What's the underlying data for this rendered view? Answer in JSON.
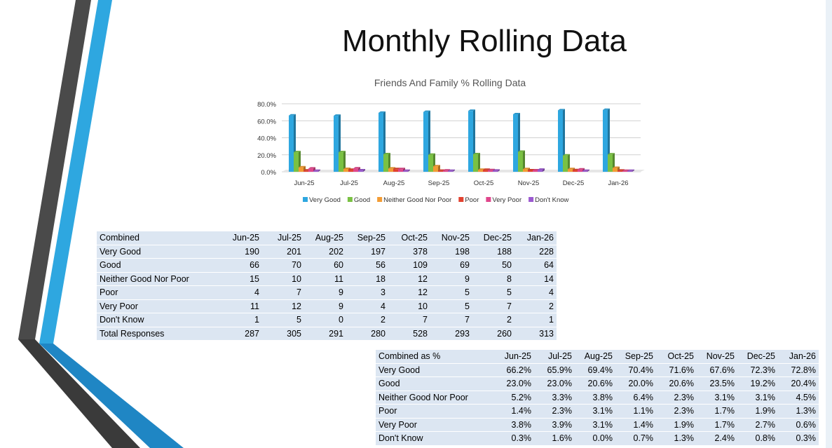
{
  "title": "Monthly Rolling Data",
  "colors": {
    "very_good": "#2ea7e0",
    "good": "#7ac143",
    "neither": "#f39c34",
    "poor": "#e2412f",
    "very_poor": "#e0468c",
    "dont_know": "#9b59d0",
    "table_row": "#dce6f2",
    "deco_blue": "#2ea7e0",
    "deco_dark": "#4a4a4a"
  },
  "chart_data": {
    "type": "bar",
    "title": "Friends And Family % Rolling Data",
    "categories": [
      "Jun-25",
      "Jul-25",
      "Aug-25",
      "Sep-25",
      "Oct-25",
      "Nov-25",
      "Dec-25",
      "Jan-26"
    ],
    "y_ticks": [
      "0.0%",
      "20.0%",
      "40.0%",
      "60.0%",
      "80.0%"
    ],
    "ylim": [
      0,
      80
    ],
    "grid": true,
    "legend": "bottom",
    "series": [
      {
        "name": "Very Good",
        "color_key": "very_good",
        "values": [
          66.2,
          65.9,
          69.4,
          70.4,
          71.6,
          67.6,
          72.3,
          72.8
        ]
      },
      {
        "name": "Good",
        "color_key": "good",
        "values": [
          23.0,
          23.0,
          20.6,
          20.0,
          20.6,
          23.5,
          19.2,
          20.4
        ]
      },
      {
        "name": "Neither Good Nor Poor",
        "color_key": "neither",
        "values": [
          5.2,
          3.3,
          3.8,
          6.4,
          2.3,
          3.1,
          3.1,
          4.5
        ]
      },
      {
        "name": "Poor",
        "color_key": "poor",
        "values": [
          1.4,
          2.3,
          3.1,
          1.1,
          2.3,
          1.7,
          1.9,
          1.3
        ]
      },
      {
        "name": "Very Poor",
        "color_key": "very_poor",
        "values": [
          3.8,
          3.9,
          3.1,
          1.4,
          1.9,
          1.7,
          2.7,
          0.6
        ]
      },
      {
        "name": "Don't Know",
        "color_key": "dont_know",
        "values": [
          0.3,
          1.6,
          0.0,
          0.7,
          1.3,
          2.4,
          0.8,
          0.3
        ]
      }
    ]
  },
  "counts_table": {
    "header": [
      "Combined",
      "Jun-25",
      "Jul-25",
      "Aug-25",
      "Sep-25",
      "Oct-25",
      "Nov-25",
      "Dec-25",
      "Jan-26"
    ],
    "rows": [
      [
        "Very Good",
        "190",
        "201",
        "202",
        "197",
        "378",
        "198",
        "188",
        "228"
      ],
      [
        "Good",
        "66",
        "70",
        "60",
        "56",
        "109",
        "69",
        "50",
        "64"
      ],
      [
        "Neither Good Nor Poor",
        "15",
        "10",
        "11",
        "18",
        "12",
        "9",
        "8",
        "14"
      ],
      [
        "Poor",
        "4",
        "7",
        "9",
        "3",
        "12",
        "5",
        "5",
        "4"
      ],
      [
        "Very Poor",
        "11",
        "12",
        "9",
        "4",
        "10",
        "5",
        "7",
        "2"
      ],
      [
        "Don't Know",
        "1",
        "5",
        "0",
        "2",
        "7",
        "7",
        "2",
        "1"
      ],
      [
        "Total Responses",
        "287",
        "305",
        "291",
        "280",
        "528",
        "293",
        "260",
        "313"
      ]
    ]
  },
  "pct_table": {
    "header": [
      "Combined as %",
      "Jun-25",
      "Jul-25",
      "Aug-25",
      "Sep-25",
      "Oct-25",
      "Nov-25",
      "Dec-25",
      "Jan-26"
    ],
    "rows": [
      [
        "Very Good",
        "66.2%",
        "65.9%",
        "69.4%",
        "70.4%",
        "71.6%",
        "67.6%",
        "72.3%",
        "72.8%"
      ],
      [
        "Good",
        "23.0%",
        "23.0%",
        "20.6%",
        "20.0%",
        "20.6%",
        "23.5%",
        "19.2%",
        "20.4%"
      ],
      [
        "Neither Good Nor Poor",
        "5.2%",
        "3.3%",
        "3.8%",
        "6.4%",
        "2.3%",
        "3.1%",
        "3.1%",
        "4.5%"
      ],
      [
        "Poor",
        "1.4%",
        "2.3%",
        "3.1%",
        "1.1%",
        "2.3%",
        "1.7%",
        "1.9%",
        "1.3%"
      ],
      [
        "Very Poor",
        "3.8%",
        "3.9%",
        "3.1%",
        "1.4%",
        "1.9%",
        "1.7%",
        "2.7%",
        "0.6%"
      ],
      [
        "Don't Know",
        "0.3%",
        "1.6%",
        "0.0%",
        "0.7%",
        "1.3%",
        "2.4%",
        "0.8%",
        "0.3%"
      ]
    ]
  }
}
